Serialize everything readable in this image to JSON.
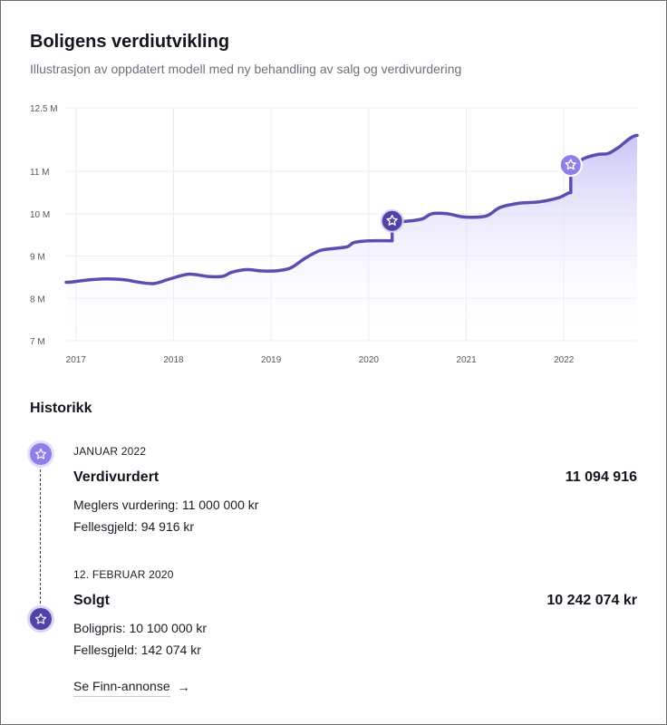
{
  "header": {
    "title": "Boligens verdiutvikling",
    "subtitle": "Illustrasjon av oppdatert modell med ny behandling av salg og verdivurdering"
  },
  "chart_data": {
    "type": "area",
    "title": "Boligens verdiutvikling",
    "xlabel": "",
    "ylabel": "",
    "x_ticks": [
      "2017",
      "2018",
      "2019",
      "2020",
      "2021",
      "2022"
    ],
    "y_ticks": [
      {
        "value": 7,
        "label": "7 M"
      },
      {
        "value": 8,
        "label": "8 M"
      },
      {
        "value": 9,
        "label": "9 M"
      },
      {
        "value": 10,
        "label": "10 M"
      },
      {
        "value": 11,
        "label": "11 M"
      },
      {
        "value": 12.5,
        "label": "12.5  M"
      }
    ],
    "xlim": [
      2016.9,
      2022.75
    ],
    "ylim": [
      7,
      12.5
    ],
    "grid": true,
    "colors": {
      "line": "#5a4fb0",
      "fill_top": "#c9c5f7",
      "grid": "#ececf2",
      "marker_sale": "#4f43a8",
      "marker_valuation": "#8f7fe6"
    },
    "series": [
      {
        "values": [
          [
            2016.9,
            8.38
          ],
          [
            2017.1,
            8.43
          ],
          [
            2017.3,
            8.46
          ],
          [
            2017.5,
            8.44
          ],
          [
            2017.65,
            8.38
          ],
          [
            2017.8,
            8.35
          ],
          [
            2017.95,
            8.45
          ],
          [
            2018.15,
            8.57
          ],
          [
            2018.35,
            8.52
          ],
          [
            2018.5,
            8.52
          ],
          [
            2018.6,
            8.62
          ],
          [
            2018.75,
            8.68
          ],
          [
            2018.9,
            8.65
          ],
          [
            2019.05,
            8.65
          ],
          [
            2019.2,
            8.72
          ],
          [
            2019.35,
            8.95
          ],
          [
            2019.5,
            9.13
          ],
          [
            2019.65,
            9.18
          ],
          [
            2019.78,
            9.22
          ],
          [
            2019.85,
            9.32
          ],
          [
            2020.0,
            9.36
          ],
          [
            2020.24,
            9.36
          ],
          [
            2020.24,
            9.8
          ],
          [
            2020.42,
            9.83
          ],
          [
            2020.55,
            9.88
          ],
          [
            2020.65,
            10.0
          ],
          [
            2020.8,
            10.0
          ],
          [
            2020.95,
            9.93
          ],
          [
            2021.1,
            9.92
          ],
          [
            2021.22,
            9.96
          ],
          [
            2021.35,
            10.15
          ],
          [
            2021.55,
            10.25
          ],
          [
            2021.75,
            10.28
          ],
          [
            2021.95,
            10.38
          ],
          [
            2022.07,
            10.5
          ],
          [
            2022.07,
            11.1
          ],
          [
            2022.2,
            11.3
          ],
          [
            2022.35,
            11.4
          ],
          [
            2022.45,
            11.42
          ],
          [
            2022.55,
            11.55
          ],
          [
            2022.75,
            11.85
          ]
        ]
      }
    ],
    "markers": [
      {
        "x": 2020.24,
        "y": 9.83,
        "kind": "sale",
        "icon": "star-icon"
      },
      {
        "x": 2022.07,
        "y": 11.15,
        "kind": "valuation",
        "icon": "star-icon"
      }
    ]
  },
  "history": {
    "title": "Historikk",
    "events": [
      {
        "date": "JANUAR 2022",
        "title": "Verdivurdert",
        "amount": "11 094 916",
        "lines": [
          "Meglers vurdering: 11 000 000 kr",
          "Fellesgjeld: 94 916 kr"
        ],
        "icon": "star-icon"
      },
      {
        "date": "12. FEBRUAR 2020",
        "title": "Solgt",
        "amount": "10 242 074 kr",
        "lines": [
          "Boligpris: 10 100 000 kr",
          "Fellesgjeld: 142 074 kr"
        ],
        "icon": "star-icon"
      }
    ],
    "link_label": "Se Finn-annonse",
    "link_arrow": "→"
  }
}
